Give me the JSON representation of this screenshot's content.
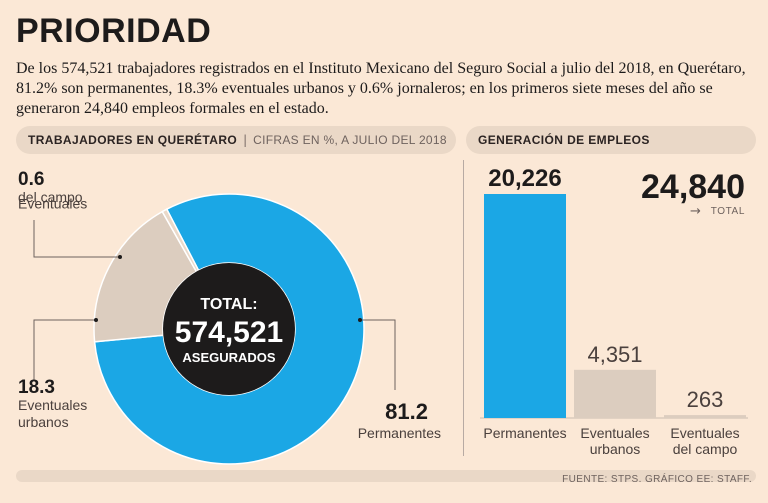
{
  "header": {
    "title": "PRIORIDAD",
    "intro": "De los 574,521 trabajadores registrados en el Instituto Mexicano del Seguro Social a julio del 2018, en Querétaro, 81.2% son permanentes, 18.3% eventuales urbanos y 0.6% jornaleros; en los primeros siete meses del año se generaron 24,840 empleos formales en el estado."
  },
  "left_section": {
    "title": "TRABAJADORES EN QUERÉTARO",
    "sep": "|",
    "subtitle": "CIFRAS EN %, A JULIO DEL 2018"
  },
  "right_section": {
    "title": "GENERACIÓN DE EMPLEOS"
  },
  "footer": {
    "source": "FUENTE: STPS. GRÁFICO EE: STAFF."
  },
  "colors": {
    "blue": "#1ba7e5",
    "beige": "#dccdbf",
    "dark": "#1d1b1b",
    "bg": "#fbe8d6"
  },
  "chart_data": [
    {
      "type": "pie",
      "style": "donut",
      "title": "TRABAJADORES EN QUERÉTARO",
      "subtitle": "CIFRAS EN %, A JULIO DEL 2018",
      "center": {
        "line1": "TOTAL:",
        "line2": "574,521",
        "line3": "ASEGURADOS"
      },
      "slices": [
        {
          "key": "perm",
          "value": 81.2,
          "value_label": "81.2",
          "line1": "Permanentes",
          "line2": "",
          "color": "#1ba7e5"
        },
        {
          "key": "urb",
          "value": 18.3,
          "value_label": "18.3",
          "line1": "Eventuales",
          "line2": "urbanos",
          "color": "#dccdbf"
        },
        {
          "key": "camp",
          "value": 0.6,
          "value_label": "0.6",
          "line1": "Eventuales",
          "line2": "del campo",
          "color": "#ead9c9"
        }
      ]
    },
    {
      "type": "bar",
      "title": "GENERACIÓN DE EMPLEOS",
      "total": {
        "value": "24,840",
        "label": "TOTAL",
        "arrow": "→"
      },
      "ylim": [
        0,
        20226
      ],
      "bars": [
        {
          "key": "perm",
          "value": 20226,
          "value_label": "20,226",
          "line1": "Permanentes",
          "line2": "",
          "color": "#1ba7e5"
        },
        {
          "key": "urb",
          "value": 4351,
          "value_label": "4,351",
          "line1": "Eventuales",
          "line2": "urbanos",
          "color": "#dccdbf"
        },
        {
          "key": "camp",
          "value": 263,
          "value_label": "263",
          "line1": "Eventuales",
          "line2": "del campo",
          "color": "#dccdbf"
        }
      ]
    }
  ]
}
